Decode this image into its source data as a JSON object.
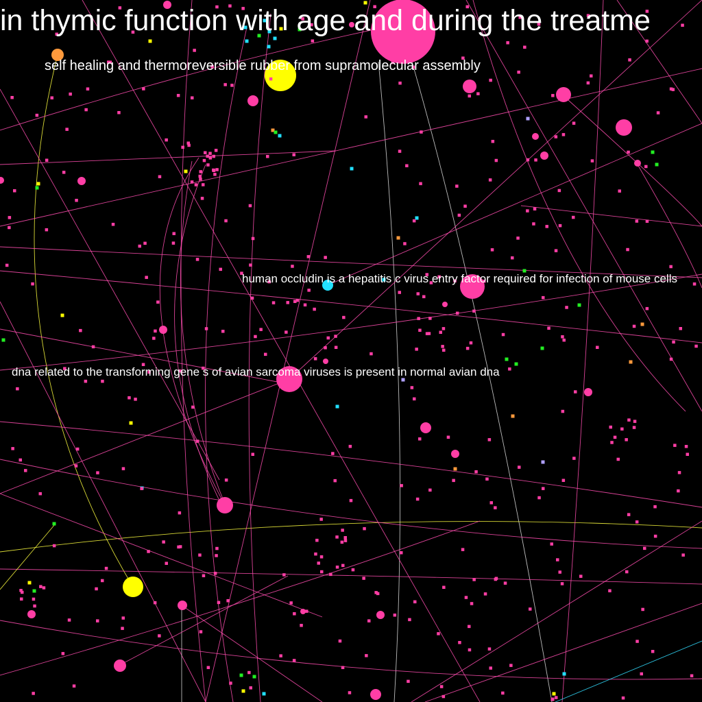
{
  "colors": {
    "background": "#000000",
    "pink": "#ff3ea5",
    "yellow": "#ffff00",
    "orange": "#ff9a3c",
    "cyan": "#22e0ff",
    "green": "#22ee22",
    "lavender": "#b0a0ff",
    "edge_pink": "#ff4db0",
    "edge_yellow": "#ffff40",
    "edge_cyan": "#33ddff",
    "edge_white": "#dddddd",
    "label": "#ffffff"
  },
  "labels": [
    "in thymic function with age and during the treatme",
    "self healing and thermoreversible rubber from supramolecular assembly",
    "human occludin is a hepatitis c virus entry factor required for infection of mouse cells",
    "dna related to the transforming gene s of avian sarcoma viruses is present in normal avian dna"
  ]
}
